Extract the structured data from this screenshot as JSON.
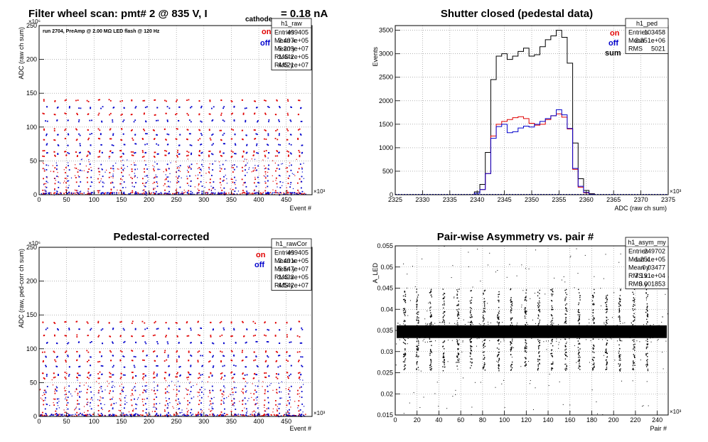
{
  "chart_data": [
    {
      "type": "scatter",
      "title": "Filter wheel scan: pmt#   2 @   835 V, I",
      "title_sub": "cathode",
      "title_tail": "= 0.18 nA",
      "annotation": "run 2704, PreAmp @ 2.00 MΩ   LED flash @  120 Hz",
      "xlabel": "Event #",
      "ylabel": "ADC (raw ch sum)",
      "x_multiplier": "×10³",
      "y_multiplier": "×10⁶",
      "xlim": [
        0,
        497
      ],
      "ylim": [
        0,
        250
      ],
      "x_ticks": [
        "0",
        "50",
        "100",
        "150",
        "200",
        "250",
        "300",
        "350",
        "400",
        "450"
      ],
      "y_ticks": [
        "0",
        "50",
        "100",
        "150",
        "200",
        "250"
      ],
      "legend": [
        {
          "label": "on",
          "color": "#e00000"
        },
        {
          "label": "off",
          "color": "#0000cc"
        }
      ],
      "stats": {
        "name": "h1_raw",
        "rows": [
          [
            "Entries",
            "499405"
          ],
          [
            "Mean x",
            "2.497e+05"
          ],
          [
            "Mean y",
            "5.209e+07"
          ],
          [
            "RMS x",
            "1.442e+05"
          ],
          [
            "RMS y",
            "4.621e+07"
          ]
        ]
      },
      "grid": true,
      "series": [
        {
          "name": "on",
          "color": "#e00000",
          "levels": [
            140,
            120,
            97,
            83,
            65,
            58,
            40,
            35,
            25,
            18,
            8,
            3
          ]
        },
        {
          "name": "off",
          "color": "#0000cc",
          "levels": [
            130,
            110,
            90,
            75,
            62,
            45,
            38,
            28,
            20,
            12,
            5,
            2
          ]
        }
      ]
    },
    {
      "type": "line",
      "title": "Shutter closed (pedestal data)",
      "xlabel": "ADC (raw ch sum)",
      "ylabel": "Events",
      "x_multiplier": "×10³",
      "xlim": [
        2325,
        2375
      ],
      "ylim": [
        0,
        3600
      ],
      "x_ticks": [
        "2325",
        "2330",
        "2335",
        "2340",
        "2345",
        "2350",
        "2355",
        "2360",
        "2365",
        "2370",
        "2375"
      ],
      "y_ticks": [
        "0",
        "500",
        "1000",
        "1500",
        "2000",
        "2500",
        "3000",
        "3500"
      ],
      "legend": [
        {
          "label": "on",
          "color": "#e00000"
        },
        {
          "label": "off",
          "color": "#0000cc"
        },
        {
          "label": "sum",
          "color": "#000000"
        }
      ],
      "stats": {
        "name": "h1_ped",
        "rows": [
          [
            "Entries",
            "103458"
          ],
          [
            "Mean",
            "2.351e+06"
          ],
          [
            "RMS",
            "5021"
          ]
        ]
      },
      "grid": true,
      "series": [
        {
          "name": "sum",
          "color": "#000000",
          "x": [
            2340,
            2341,
            2342,
            2343,
            2344,
            2345,
            2346,
            2347,
            2348,
            2349,
            2350,
            2351,
            2352,
            2353,
            2354,
            2355,
            2356,
            2357,
            2358,
            2359,
            2360,
            2361,
            2362
          ],
          "values": [
            60,
            220,
            900,
            2450,
            2950,
            3000,
            2880,
            2950,
            3050,
            3120,
            2950,
            2980,
            3150,
            3300,
            3380,
            3500,
            3350,
            2800,
            1100,
            340,
            90,
            20,
            0
          ]
        },
        {
          "name": "on",
          "color": "#e00000",
          "x": [
            2340,
            2341,
            2342,
            2343,
            2344,
            2345,
            2346,
            2347,
            2348,
            2349,
            2350,
            2351,
            2352,
            2353,
            2354,
            2355,
            2356,
            2357,
            2358,
            2359,
            2360,
            2361,
            2362
          ],
          "values": [
            30,
            110,
            450,
            1250,
            1500,
            1560,
            1600,
            1640,
            1660,
            1620,
            1520,
            1480,
            1500,
            1600,
            1680,
            1720,
            1650,
            1400,
            540,
            160,
            40,
            10,
            0
          ]
        },
        {
          "name": "off",
          "color": "#0000cc",
          "x": [
            2340,
            2341,
            2342,
            2343,
            2344,
            2345,
            2346,
            2347,
            2348,
            2349,
            2350,
            2351,
            2352,
            2353,
            2354,
            2355,
            2356,
            2357,
            2358,
            2359,
            2360,
            2361,
            2362
          ],
          "values": [
            30,
            110,
            450,
            1200,
            1450,
            1500,
            1320,
            1340,
            1420,
            1460,
            1440,
            1500,
            1560,
            1620,
            1680,
            1810,
            1700,
            1410,
            560,
            180,
            50,
            10,
            0
          ]
        }
      ]
    },
    {
      "type": "scatter",
      "title": "Pedestal-corrected",
      "xlabel": "Event #",
      "ylabel": "ADC (raw, ped-corr ch sum)",
      "x_multiplier": "×10³",
      "y_multiplier": "×10⁶",
      "xlim": [
        0,
        497
      ],
      "ylim": [
        0,
        250
      ],
      "x_ticks": [
        "0",
        "50",
        "100",
        "150",
        "200",
        "250",
        "300",
        "350",
        "400",
        "450"
      ],
      "y_ticks": [
        "0",
        "50",
        "100",
        "150",
        "200",
        "250"
      ],
      "legend": [
        {
          "label": "on",
          "color": "#e00000"
        },
        {
          "label": "off",
          "color": "#0000cc"
        }
      ],
      "stats": {
        "name": "h1_rawCor",
        "rows": [
          [
            "Entries",
            "499405"
          ],
          [
            "Mean x",
            "2.491e+05"
          ],
          [
            "Mean y",
            "5.547e+07"
          ],
          [
            "RMS x",
            "1.433e+05"
          ],
          [
            "RMS y",
            "4.542e+07"
          ]
        ]
      },
      "grid": true,
      "series": [
        {
          "name": "on",
          "color": "#e00000",
          "levels": [
            140,
            120,
            97,
            83,
            65,
            58,
            40,
            35,
            25,
            18,
            8,
            3
          ]
        },
        {
          "name": "off",
          "color": "#0000cc",
          "levels": [
            130,
            110,
            90,
            75,
            62,
            45,
            38,
            28,
            20,
            12,
            5,
            2
          ]
        }
      ]
    },
    {
      "type": "scatter",
      "title": "Pair-wise Asymmetry vs. pair #",
      "xlabel": "Pair #",
      "ylabel": "A_LED",
      "x_multiplier": "×10³",
      "xlim": [
        0,
        250
      ],
      "ylim": [
        0.015,
        0.055
      ],
      "x_ticks": [
        "0",
        "20",
        "40",
        "60",
        "80",
        "100",
        "120",
        "140",
        "160",
        "180",
        "200",
        "220",
        "240"
      ],
      "y_ticks": [
        "0.015",
        "0.02",
        "0.025",
        "0.03",
        "0.035",
        "0.04",
        "0.045",
        "0.05",
        "0.055"
      ],
      "stats": {
        "name": "h1_asym_my",
        "rows": [
          [
            "Entries",
            "249702"
          ],
          [
            "Mean x",
            "1.251e+05"
          ],
          [
            "Mean y",
            "0.03477"
          ],
          [
            "RMS x",
            "7.191e+04"
          ],
          [
            "RMS y",
            "0.001853"
          ]
        ]
      },
      "grid": true,
      "series": [
        {
          "name": "asym",
          "color": "#000000",
          "center": 0.0347,
          "band": 0.0015,
          "spike_x": [
            8,
            20,
            32,
            44,
            57,
            69,
            81,
            94,
            106,
            119,
            131,
            143,
            156,
            168,
            181,
            193,
            205,
            218,
            230
          ],
          "spike_top": 0.045,
          "spike_bottom": 0.0255
        }
      ]
    }
  ]
}
